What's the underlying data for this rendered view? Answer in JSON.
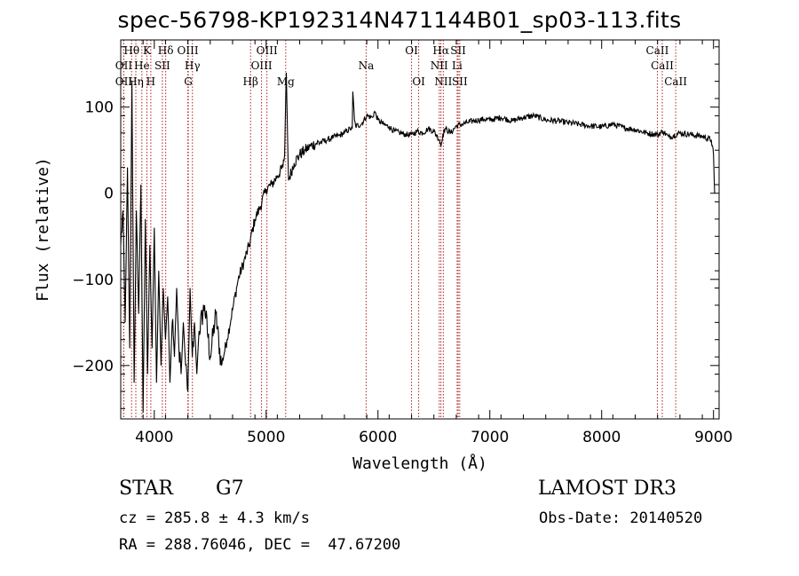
{
  "chart_data": {
    "type": "line",
    "title": "spec-56798-KP192314N471144B01_sp03-113.fits",
    "xlabel": "Wavelength (Å)",
    "ylabel": "Flux (relative)",
    "xlim": [
      3700,
      9050
    ],
    "ylim": [
      -262,
      178
    ],
    "xticks": [
      4000,
      5000,
      6000,
      7000,
      8000,
      9000
    ],
    "yticks": [
      -200,
      -100,
      0,
      100
    ],
    "series": [
      {
        "name": "spectrum",
        "x": [
          3700,
          3720,
          3740,
          3760,
          3780,
          3800,
          3820,
          3840,
          3860,
          3880,
          3900,
          3920,
          3940,
          3960,
          3980,
          4000,
          4020,
          4040,
          4060,
          4080,
          4100,
          4120,
          4140,
          4160,
          4180,
          4200,
          4220,
          4240,
          4260,
          4280,
          4300,
          4320,
          4340,
          4360,
          4380,
          4400,
          4450,
          4500,
          4550,
          4600,
          4650,
          4700,
          4750,
          4800,
          4850,
          4900,
          4950,
          5000,
          5050,
          5100,
          5150,
          5165,
          5180,
          5200,
          5250,
          5300,
          5350,
          5400,
          5450,
          5500,
          5550,
          5600,
          5650,
          5700,
          5750,
          5770,
          5775,
          5790,
          5800,
          5850,
          5900,
          5950,
          5970,
          6000,
          6050,
          6100,
          6150,
          6200,
          6250,
          6300,
          6350,
          6400,
          6450,
          6500,
          6550,
          6563,
          6580,
          6600,
          6650,
          6700,
          6750,
          6800,
          6850,
          6900,
          6950,
          7000,
          7100,
          7200,
          7300,
          7400,
          7500,
          7600,
          7700,
          7800,
          7900,
          8000,
          8100,
          8200,
          8300,
          8400,
          8500,
          8550,
          8600,
          8700,
          8800,
          8900,
          8980,
          9000,
          9010
        ],
        "y": [
          -60,
          -20,
          -150,
          30,
          -180,
          130,
          -220,
          -20,
          -140,
          10,
          -255,
          -30,
          -210,
          -60,
          -180,
          -40,
          -220,
          -90,
          -200,
          -110,
          -170,
          -120,
          -220,
          -150,
          -190,
          -110,
          -180,
          -210,
          -150,
          -200,
          -230,
          -110,
          -190,
          -150,
          -210,
          -160,
          -130,
          -190,
          -140,
          -200,
          -170,
          -135,
          -100,
          -80,
          -60,
          -30,
          -15,
          5,
          10,
          20,
          30,
          45,
          140,
          15,
          35,
          45,
          50,
          55,
          58,
          60,
          62,
          65,
          67,
          70,
          75,
          75,
          118,
          85,
          78,
          80,
          90,
          88,
          95,
          85,
          80,
          77,
          72,
          70,
          68,
          68,
          72,
          70,
          75,
          72,
          62,
          55,
          68,
          75,
          70,
          78,
          80,
          82,
          84,
          85,
          86,
          85,
          88,
          84,
          88,
          90,
          85,
          84,
          82,
          80,
          78,
          77,
          80,
          76,
          74,
          70,
          68,
          72,
          65,
          70,
          68,
          66,
          62,
          45,
          0
        ]
      }
    ],
    "lines": [
      {
        "name": "OII",
        "x": 3727,
        "row": 2
      },
      {
        "name": "OII",
        "x": 3727,
        "row": 3
      },
      {
        "name": "Hθ",
        "x": 3797,
        "row": 1
      },
      {
        "name": "Hη",
        "x": 3835,
        "row": 3
      },
      {
        "name": "He",
        "x": 3889,
        "row": 2
      },
      {
        "name": "K",
        "x": 3934,
        "row": 1
      },
      {
        "name": "H",
        "x": 3969,
        "row": 3
      },
      {
        "name": "SII",
        "x": 4072,
        "row": 2
      },
      {
        "name": "Hδ",
        "x": 4102,
        "row": 1
      },
      {
        "name": "OIII",
        "x": 4300,
        "row": 1
      },
      {
        "name": "G",
        "x": 4304,
        "row": 3
      },
      {
        "name": "Hγ",
        "x": 4341,
        "row": 2
      },
      {
        "name": "Hβ",
        "x": 4861,
        "row": 3
      },
      {
        "name": "OIII",
        "x": 4959,
        "row": 2
      },
      {
        "name": "OIII",
        "x": 5007,
        "row": 1
      },
      {
        "name": "Mg",
        "x": 5175,
        "row": 3
      },
      {
        "name": "Na",
        "x": 5894,
        "row": 2
      },
      {
        "name": "OI",
        "x": 6300,
        "row": 1
      },
      {
        "name": "OI",
        "x": 6364,
        "row": 3
      },
      {
        "name": "NII",
        "x": 6548,
        "row": 2
      },
      {
        "name": "NII",
        "x": 6584,
        "row": 3
      },
      {
        "name": "Hα",
        "x": 6563,
        "row": 1
      },
      {
        "name": "Li",
        "x": 6708,
        "row": 2
      },
      {
        "name": "SII",
        "x": 6717,
        "row": 1
      },
      {
        "name": "SII",
        "x": 6731,
        "row": 3
      },
      {
        "name": "CaII",
        "x": 8498,
        "row": 1
      },
      {
        "name": "CaII",
        "x": 8542,
        "row": 2
      },
      {
        "name": "CaII",
        "x": 8662,
        "row": 3
      }
    ]
  },
  "info": {
    "object_class": "STAR",
    "subclass": "G7",
    "survey": "LAMOST DR3",
    "redshift": "cz = 285.8 ± 4.3 km/s",
    "obs_date": "Obs-Date: 20140520",
    "coords": "RA = 288.76046, DEC =  47.67200"
  }
}
